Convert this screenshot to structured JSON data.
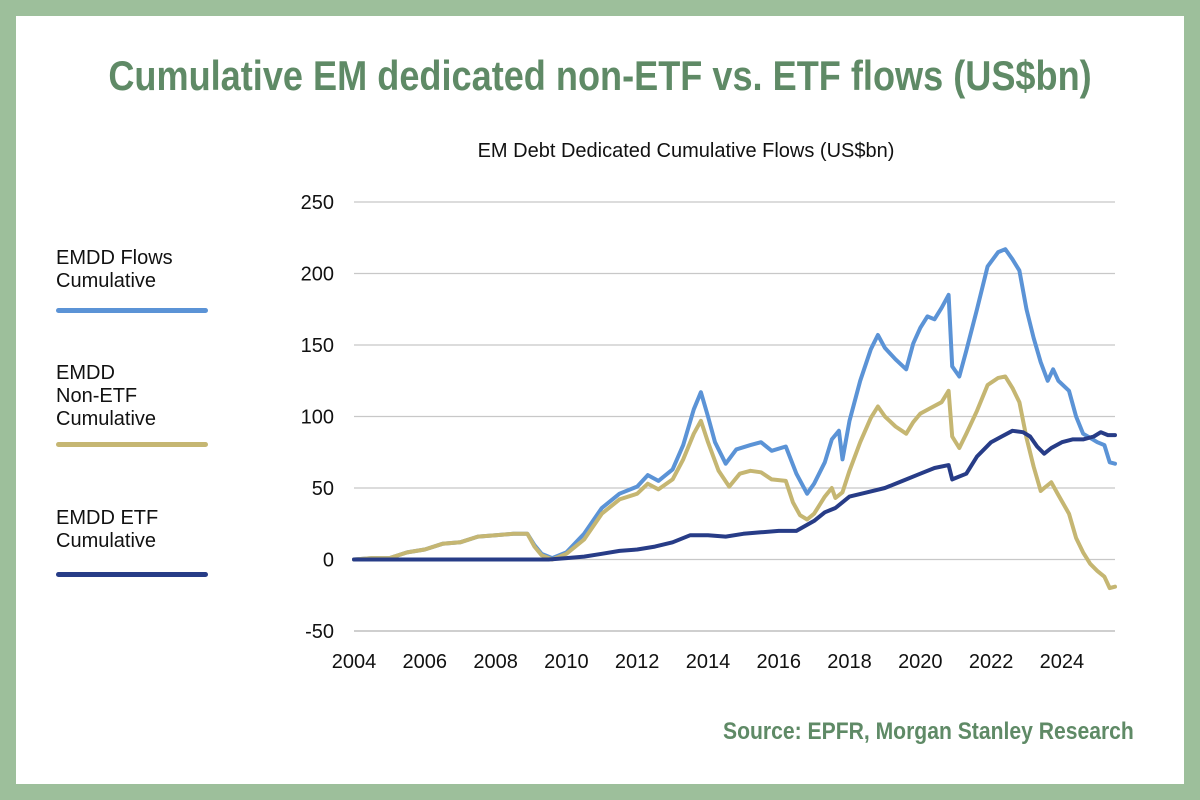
{
  "title": "Cumulative EM dedicated non-ETF vs. ETF flows (US$bn)",
  "source": "Source: EPFR, Morgan Stanley Research",
  "colors": {
    "frame": "#9dbf9b",
    "title": "#5f8a66",
    "emdd_flows": "#5b93d6",
    "emdd_non_etf": "#c5b672",
    "emdd_etf": "#273c87"
  },
  "chart_data": {
    "type": "line",
    "title": "EM Debt Dedicated Cumulative Flows (US$bn)",
    "xlabel": "",
    "ylabel": "",
    "xlim": [
      2004,
      2025.5
    ],
    "ylim": [
      -50,
      250
    ],
    "x_ticks": [
      "2004",
      "2006",
      "2008",
      "2010",
      "2012",
      "2014",
      "2016",
      "2018",
      "2020",
      "2022",
      "2024"
    ],
    "y_ticks": [
      "250",
      "200",
      "150",
      "100",
      "50",
      "0",
      "-50"
    ],
    "grid": true,
    "legend_position": "left",
    "series": [
      {
        "name": "EMDD Flows Cumulative",
        "color": "#5b93d6",
        "points": [
          [
            2004,
            0
          ],
          [
            2004.5,
            1
          ],
          [
            2005,
            1
          ],
          [
            2005.5,
            5
          ],
          [
            2006,
            7
          ],
          [
            2006.5,
            11
          ],
          [
            2007,
            12
          ],
          [
            2007.5,
            16
          ],
          [
            2008,
            17
          ],
          [
            2008.5,
            18
          ],
          [
            2008.9,
            18
          ],
          [
            2009.1,
            10
          ],
          [
            2009.3,
            4
          ],
          [
            2009.6,
            1
          ],
          [
            2010,
            5
          ],
          [
            2010.5,
            18
          ],
          [
            2011,
            36
          ],
          [
            2011.5,
            46
          ],
          [
            2012,
            51
          ],
          [
            2012.3,
            59
          ],
          [
            2012.6,
            55
          ],
          [
            2013,
            63
          ],
          [
            2013.3,
            80
          ],
          [
            2013.6,
            105
          ],
          [
            2013.8,
            117
          ],
          [
            2014,
            100
          ],
          [
            2014.2,
            82
          ],
          [
            2014.5,
            67
          ],
          [
            2014.8,
            77
          ],
          [
            2015.2,
            80
          ],
          [
            2015.5,
            82
          ],
          [
            2015.8,
            76
          ],
          [
            2016.2,
            79
          ],
          [
            2016.5,
            60
          ],
          [
            2016.8,
            46
          ],
          [
            2017,
            53
          ],
          [
            2017.3,
            68
          ],
          [
            2017.5,
            84
          ],
          [
            2017.7,
            90
          ],
          [
            2017.8,
            70
          ],
          [
            2018,
            97
          ],
          [
            2018.3,
            125
          ],
          [
            2018.6,
            147
          ],
          [
            2018.8,
            157
          ],
          [
            2019,
            148
          ],
          [
            2019.3,
            140
          ],
          [
            2019.6,
            133
          ],
          [
            2019.8,
            151
          ],
          [
            2020,
            162
          ],
          [
            2020.2,
            170
          ],
          [
            2020.4,
            168
          ],
          [
            2020.6,
            176
          ],
          [
            2020.8,
            185
          ],
          [
            2020.9,
            135
          ],
          [
            2021.1,
            128
          ],
          [
            2021.3,
            146
          ],
          [
            2021.6,
            175
          ],
          [
            2021.9,
            205
          ],
          [
            2022.2,
            215
          ],
          [
            2022.4,
            217
          ],
          [
            2022.6,
            210
          ],
          [
            2022.8,
            202
          ],
          [
            2023,
            175
          ],
          [
            2023.2,
            155
          ],
          [
            2023.4,
            138
          ],
          [
            2023.6,
            125
          ],
          [
            2023.75,
            133
          ],
          [
            2023.9,
            125
          ],
          [
            2024.2,
            118
          ],
          [
            2024.4,
            100
          ],
          [
            2024.6,
            88
          ],
          [
            2024.8,
            85
          ],
          [
            2025,
            82
          ],
          [
            2025.2,
            80
          ],
          [
            2025.35,
            68
          ],
          [
            2025.5,
            67
          ]
        ]
      },
      {
        "name": "EMDD Non-ETF Cumulative",
        "color": "#c5b672",
        "points": [
          [
            2004,
            0
          ],
          [
            2004.5,
            1
          ],
          [
            2005,
            1
          ],
          [
            2005.5,
            5
          ],
          [
            2006,
            7
          ],
          [
            2006.5,
            11
          ],
          [
            2007,
            12
          ],
          [
            2007.5,
            16
          ],
          [
            2008,
            17
          ],
          [
            2008.5,
            18
          ],
          [
            2008.9,
            18
          ],
          [
            2009.1,
            9
          ],
          [
            2009.3,
            3
          ],
          [
            2009.6,
            0
          ],
          [
            2010,
            4
          ],
          [
            2010.5,
            14
          ],
          [
            2011,
            32
          ],
          [
            2011.5,
            42
          ],
          [
            2012,
            46
          ],
          [
            2012.3,
            53
          ],
          [
            2012.6,
            49
          ],
          [
            2013,
            56
          ],
          [
            2013.3,
            70
          ],
          [
            2013.6,
            88
          ],
          [
            2013.8,
            97
          ],
          [
            2014,
            82
          ],
          [
            2014.3,
            62
          ],
          [
            2014.6,
            51
          ],
          [
            2014.9,
            60
          ],
          [
            2015.2,
            62
          ],
          [
            2015.5,
            61
          ],
          [
            2015.8,
            56
          ],
          [
            2016.2,
            55
          ],
          [
            2016.4,
            40
          ],
          [
            2016.6,
            31
          ],
          [
            2016.8,
            28
          ],
          [
            2017,
            32
          ],
          [
            2017.3,
            44
          ],
          [
            2017.5,
            50
          ],
          [
            2017.6,
            43
          ],
          [
            2017.8,
            47
          ],
          [
            2018,
            62
          ],
          [
            2018.3,
            82
          ],
          [
            2018.6,
            99
          ],
          [
            2018.8,
            107
          ],
          [
            2019,
            100
          ],
          [
            2019.3,
            93
          ],
          [
            2019.6,
            88
          ],
          [
            2019.8,
            96
          ],
          [
            2020,
            102
          ],
          [
            2020.3,
            106
          ],
          [
            2020.6,
            110
          ],
          [
            2020.8,
            118
          ],
          [
            2020.9,
            86
          ],
          [
            2021.1,
            78
          ],
          [
            2021.3,
            88
          ],
          [
            2021.6,
            104
          ],
          [
            2021.9,
            122
          ],
          [
            2022.2,
            127
          ],
          [
            2022.4,
            128
          ],
          [
            2022.6,
            120
          ],
          [
            2022.8,
            110
          ],
          [
            2023,
            85
          ],
          [
            2023.2,
            65
          ],
          [
            2023.4,
            48
          ],
          [
            2023.5,
            50
          ],
          [
            2023.7,
            54
          ],
          [
            2023.9,
            45
          ],
          [
            2024.2,
            32
          ],
          [
            2024.4,
            15
          ],
          [
            2024.6,
            5
          ],
          [
            2024.8,
            -3
          ],
          [
            2025,
            -8
          ],
          [
            2025.2,
            -12
          ],
          [
            2025.35,
            -20
          ],
          [
            2025.5,
            -19
          ]
        ]
      },
      {
        "name": "EMDD ETF Cumulative",
        "color": "#273c87",
        "points": [
          [
            2004,
            0
          ],
          [
            2009,
            0
          ],
          [
            2009.5,
            0
          ],
          [
            2010,
            1
          ],
          [
            2010.5,
            2
          ],
          [
            2011,
            4
          ],
          [
            2011.5,
            6
          ],
          [
            2012,
            7
          ],
          [
            2012.5,
            9
          ],
          [
            2013,
            12
          ],
          [
            2013.5,
            17
          ],
          [
            2014,
            17
          ],
          [
            2014.5,
            16
          ],
          [
            2015,
            18
          ],
          [
            2015.5,
            19
          ],
          [
            2016,
            20
          ],
          [
            2016.5,
            20
          ],
          [
            2017,
            27
          ],
          [
            2017.3,
            33
          ],
          [
            2017.6,
            36
          ],
          [
            2018,
            44
          ],
          [
            2018.5,
            47
          ],
          [
            2019,
            50
          ],
          [
            2019.5,
            55
          ],
          [
            2020,
            60
          ],
          [
            2020.4,
            64
          ],
          [
            2020.8,
            66
          ],
          [
            2020.9,
            56
          ],
          [
            2021.3,
            60
          ],
          [
            2021.6,
            72
          ],
          [
            2022,
            82
          ],
          [
            2022.3,
            86
          ],
          [
            2022.6,
            90
          ],
          [
            2022.9,
            89
          ],
          [
            2023.1,
            86
          ],
          [
            2023.3,
            79
          ],
          [
            2023.5,
            74
          ],
          [
            2023.7,
            78
          ],
          [
            2024,
            82
          ],
          [
            2024.3,
            84
          ],
          [
            2024.6,
            84
          ],
          [
            2024.9,
            86
          ],
          [
            2025.1,
            89
          ],
          [
            2025.3,
            87
          ],
          [
            2025.5,
            87
          ]
        ]
      }
    ]
  }
}
